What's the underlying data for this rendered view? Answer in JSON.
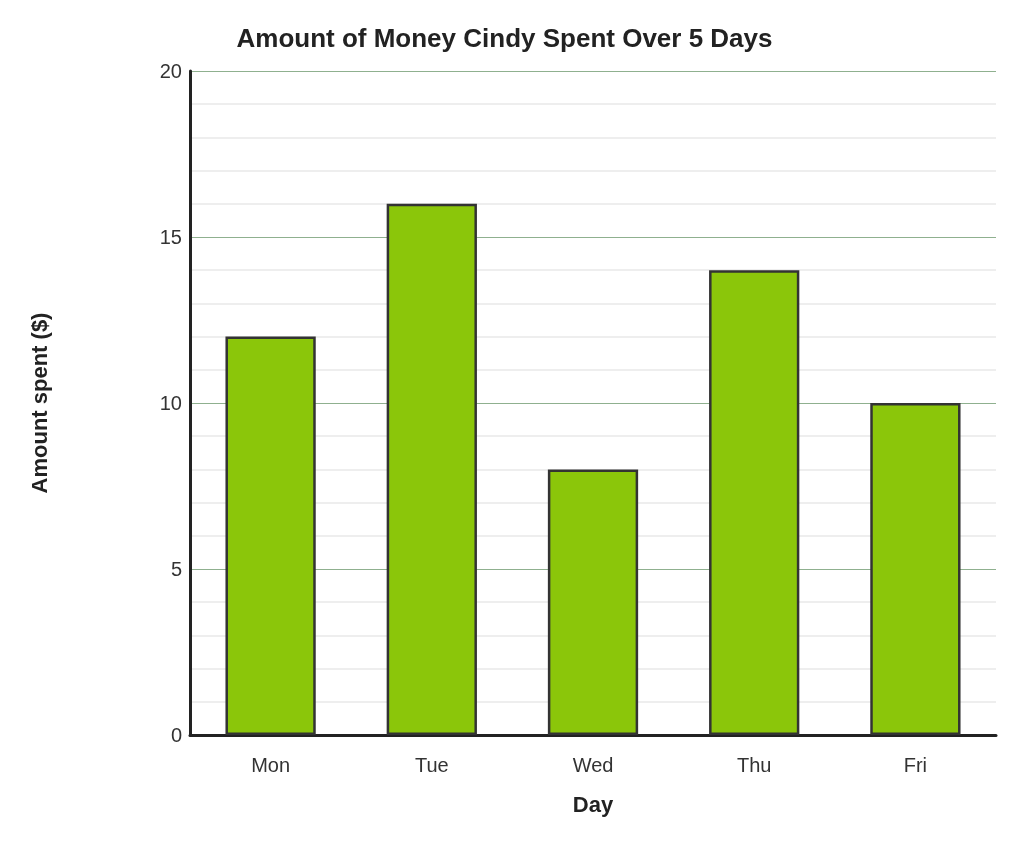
{
  "chart_data": {
    "type": "bar",
    "title": "Amount of Money Cindy Spent Over 5 Days",
    "xlabel": "Day",
    "ylabel": "Amount spent ($)",
    "categories": [
      "Mon",
      "Tue",
      "Wed",
      "Thu",
      "Fri"
    ],
    "values": [
      12,
      16,
      8,
      14,
      10
    ],
    "color": "#8bc60a",
    "ylim": [
      0,
      20
    ],
    "yticks": [
      0,
      5,
      10,
      15,
      20
    ],
    "grid": "y"
  }
}
